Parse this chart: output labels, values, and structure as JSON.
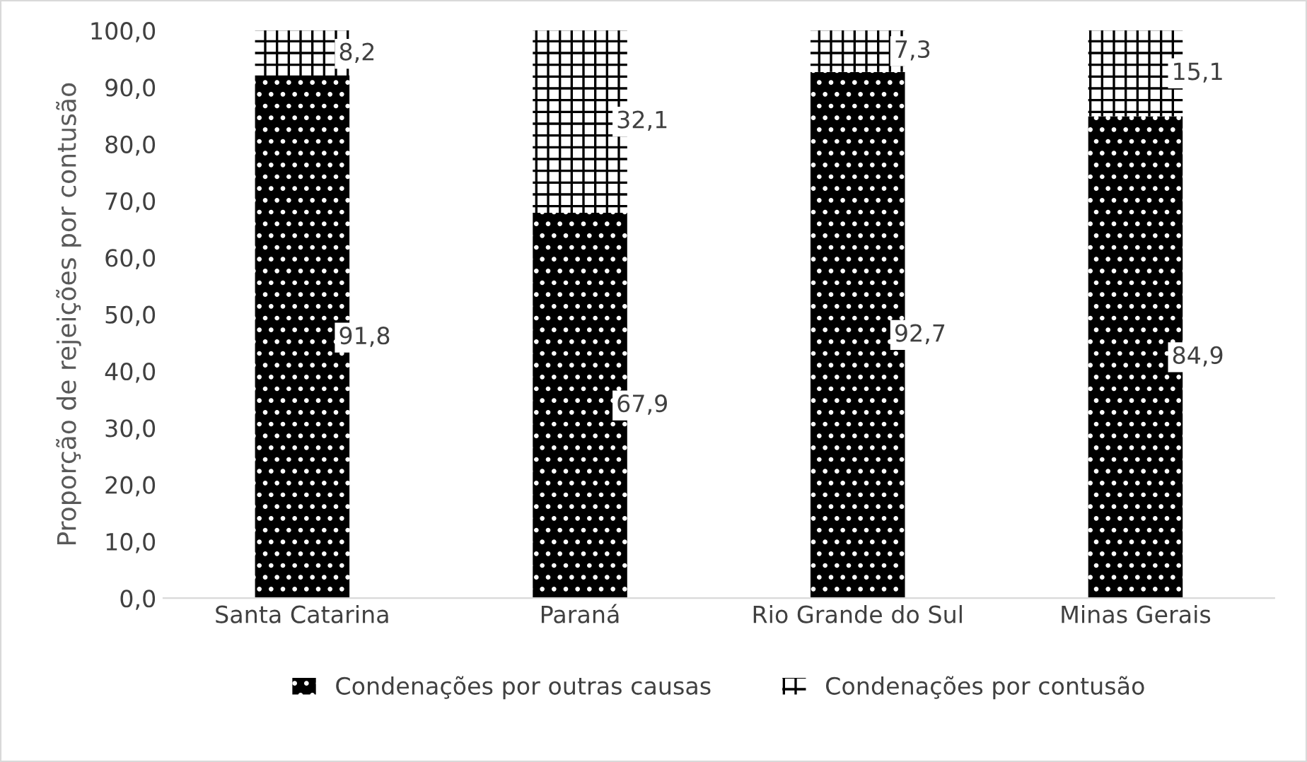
{
  "chart_data": {
    "type": "bar",
    "ylabel": "Proporção de rejeições por contusão",
    "categories": [
      "Santa Catarina",
      "Paraná",
      "Rio Grande do Sul",
      "Minas Gerais"
    ],
    "stacked": true,
    "series": [
      {
        "name": "Condenações por outras causas",
        "color": "#000000",
        "values": [
          91.8,
          67.9,
          92.7,
          84.9
        ],
        "value_labels": [
          "91,8",
          "67,9",
          "92,7",
          "84,9"
        ]
      },
      {
        "name": "Condenações por contusão",
        "color": "#ffffff",
        "values": [
          8.2,
          32.1,
          7.3,
          15.1
        ],
        "value_labels": [
          "8,2",
          "32,1",
          "7,3",
          "15,1"
        ]
      }
    ],
    "ylim": [
      0,
      100
    ],
    "yticks": [
      {
        "value": 0,
        "label": "0,0"
      },
      {
        "value": 10,
        "label": "10,0"
      },
      {
        "value": 20,
        "label": "20,0"
      },
      {
        "value": 30,
        "label": "30,0"
      },
      {
        "value": 40,
        "label": "40,0"
      },
      {
        "value": 50,
        "label": "50,0"
      },
      {
        "value": 60,
        "label": "60,0"
      },
      {
        "value": 70,
        "label": "70,0"
      },
      {
        "value": 80,
        "label": "80,0"
      },
      {
        "value": 90,
        "label": "90,0"
      },
      {
        "value": 100,
        "label": "100,0"
      }
    ],
    "grid": false,
    "legend": "bottom"
  }
}
